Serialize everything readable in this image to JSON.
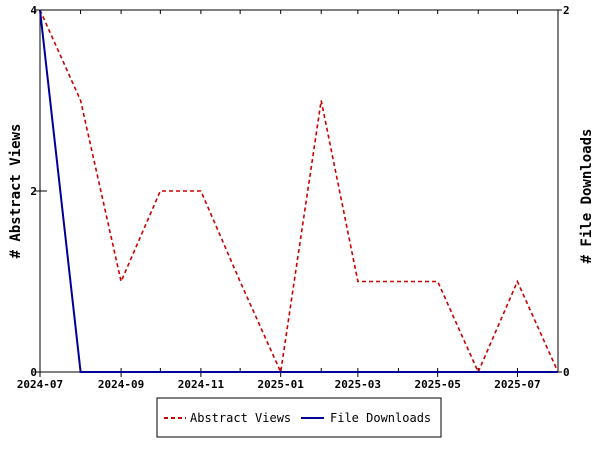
{
  "chart_data": {
    "type": "line",
    "x_axis": {
      "type": "date",
      "range": [
        "2024-07-01",
        "2025-08-01"
      ],
      "tick_labels": [
        "2024-07",
        "2024-09",
        "2024-11",
        "2025-01",
        "2025-03",
        "2025-05",
        "2025-07"
      ]
    },
    "y_left": {
      "label": "# Abstract Views",
      "range": [
        0,
        4
      ],
      "tick_labels": [
        "0",
        "2",
        "4"
      ]
    },
    "y_right": {
      "label": "# File Downloads",
      "range": [
        0,
        2
      ],
      "tick_labels": [
        "0",
        "2"
      ]
    },
    "series": [
      {
        "name": "Abstract Views",
        "axis": "left",
        "color": "#cc0000",
        "dash": "dashed",
        "x": [
          "2024-07-01",
          "2024-08-01",
          "2024-09-01",
          "2024-10-01",
          "2024-11-01",
          "2024-12-01",
          "2025-01-01",
          "2025-02-01",
          "2025-03-01",
          "2025-04-01",
          "2025-05-01",
          "2025-06-01",
          "2025-07-01",
          "2025-08-01"
        ],
        "values": [
          4,
          3,
          1,
          2,
          2,
          1,
          0,
          3,
          1,
          1,
          1,
          0,
          1,
          0
        ]
      },
      {
        "name": "File Downloads",
        "axis": "right",
        "color": "#000099",
        "dash": "solid",
        "x": [
          "2024-07-01",
          "2024-08-01",
          "2024-09-01",
          "2024-10-01",
          "2024-11-01",
          "2024-12-01",
          "2025-01-01",
          "2025-02-01",
          "2025-03-01",
          "2025-04-01",
          "2025-05-01",
          "2025-06-01",
          "2025-07-01",
          "2025-08-01"
        ],
        "values": [
          2,
          0,
          0,
          0,
          0,
          0,
          0,
          0,
          0,
          0,
          0,
          0,
          0,
          0
        ]
      }
    ],
    "legend": {
      "placement": "bottom-center",
      "entries": [
        "Abstract Views",
        "File Downloads"
      ]
    },
    "grid": false
  }
}
